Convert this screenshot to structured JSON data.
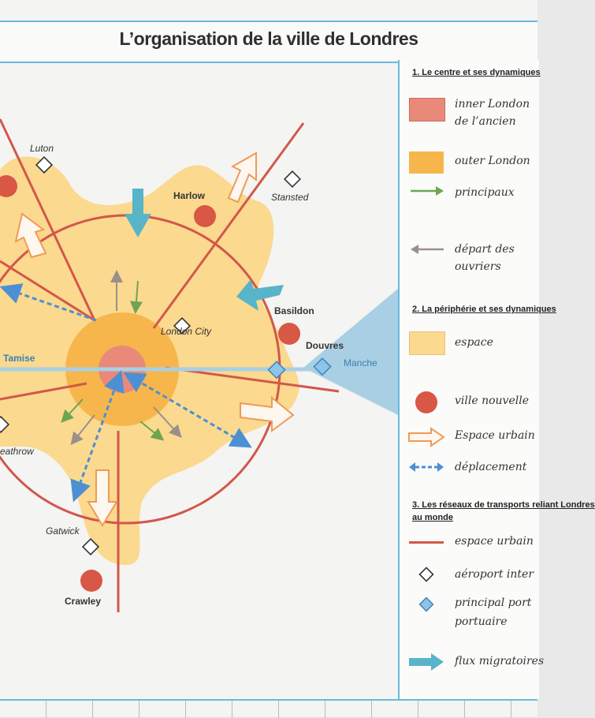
{
  "title": "L’organisation de la ville de Londres",
  "map": {
    "places": {
      "luton": "Luton",
      "harlow": "Harlow",
      "stansted": "Stansted",
      "basildon": "Basildon",
      "london_city": "London City",
      "douvres": "Douvres",
      "manche": "Manche",
      "tamise": "Tamise",
      "heathrow": "eathrow",
      "gatwick": "Gatwick",
      "crawley": "Crawley"
    },
    "colors": {
      "inner_london": "#e8897a",
      "outer_london": "#f6b64c",
      "periphery": "#fbd98e",
      "road": "#d2574a",
      "water": "#a9cfe4",
      "blue_arrow": "#58b4c9",
      "green_arrow": "#6ea54f",
      "grey_arrow": "#9b8f8a",
      "white_arrow_stroke": "#f09a55",
      "dashed_arrow": "#4d8fd3",
      "port": "#8cc4ea"
    }
  },
  "legend": {
    "section1": "1. Le centre et ses dynamiques",
    "section2": "2. La périphérie et ses dynamiques",
    "section3_line1": "3. Les réseaux de transports reliant Londres",
    "section3_line2": "au monde",
    "notes": {
      "inner_london": "inner London",
      "inner_london_2": "de l’ancien",
      "outer_london": "outer London",
      "green_arrow": "principaux",
      "grey_arrow": "départ des",
      "grey_arrow_2": "ouvriers",
      "periphery": "espace",
      "new_town": "ville nouvelle",
      "white_arrow": "Espace urbain",
      "dashed_arrow": "déplacement",
      "road": "espace urbain",
      "airport": "aéroport inter",
      "port": "principal port",
      "port_2": "portuaire",
      "flux": "flux migratoires"
    }
  }
}
